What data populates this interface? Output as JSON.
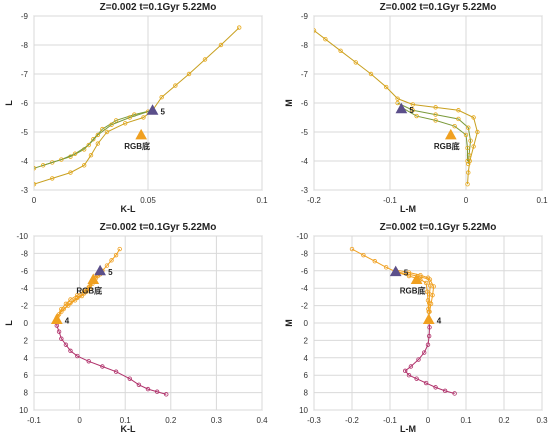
{
  "chart_data": [
    {
      "type": "line",
      "title": "Z=0.002  t=0.1Gyr 5.22Mo",
      "xlabel": "K-L",
      "ylabel": "L",
      "xlim": [
        0,
        0.1
      ],
      "ylim": [
        -3,
        -9
      ],
      "x_ticks": [
        "0",
        "0.05",
        "0.1"
      ],
      "y_ticks": [
        "-3",
        "-4",
        "-5",
        "-6",
        "-7",
        "-8",
        "-9"
      ],
      "grid": true,
      "series": [
        {
          "values": [
            [
              0.0,
              -3.2
            ],
            [
              0.008,
              -3.4
            ],
            [
              0.016,
              -3.6
            ],
            [
              0.022,
              -3.85
            ],
            [
              0.025,
              -4.2
            ],
            [
              0.028,
              -4.6
            ],
            [
              0.032,
              -5.0
            ],
            [
              0.04,
              -5.3
            ],
            [
              0.048,
              -5.5
            ],
            [
              0.052,
              -5.75
            ],
            [
              0.056,
              -6.2
            ],
            [
              0.062,
              -6.6
            ],
            [
              0.068,
              -7.0
            ],
            [
              0.075,
              -7.5
            ],
            [
              0.082,
              -8.0
            ],
            [
              0.09,
              -8.6
            ]
          ]
        },
        {
          "values": [
            [
              0.0,
              -3.75
            ],
            [
              0.008,
              -3.95
            ],
            [
              0.016,
              -4.15
            ],
            [
              0.022,
              -4.4
            ],
            [
              0.026,
              -4.75
            ],
            [
              0.03,
              -5.1
            ],
            [
              0.036,
              -5.4
            ],
            [
              0.044,
              -5.6
            ],
            [
              0.052,
              -5.75
            ]
          ]
        },
        {
          "values": [
            [
              0.004,
              -3.85
            ],
            [
              0.012,
              -4.05
            ],
            [
              0.018,
              -4.25
            ],
            [
              0.024,
              -4.55
            ],
            [
              0.028,
              -4.9
            ],
            [
              0.034,
              -5.25
            ],
            [
              0.042,
              -5.5
            ],
            [
              0.05,
              -5.7
            ]
          ]
        }
      ],
      "markers": [
        {
          "label": "5",
          "x": 0.052,
          "y": -5.75,
          "color": "#5b4f8a",
          "shape": "triangle"
        },
        {
          "label": "RGB底",
          "x": 0.047,
          "y": -4.9,
          "color": "#f0a020",
          "shape": "triangle"
        }
      ]
    },
    {
      "type": "line",
      "title": "Z=0.002  t=0.1Gyr 5.22Mo",
      "xlabel": "L-M",
      "ylabel": "M",
      "xlim": [
        -0.2,
        0.1
      ],
      "ylim": [
        -3,
        -9
      ],
      "x_ticks": [
        "-0.2",
        "-0.1",
        "0",
        "0.1"
      ],
      "y_ticks": [
        "-3",
        "-4",
        "-5",
        "-6",
        "-7",
        "-8",
        "-9"
      ],
      "grid": true,
      "series": [
        {
          "values": [
            [
              -0.2,
              -8.5
            ],
            [
              -0.185,
              -8.2
            ],
            [
              -0.165,
              -7.8
            ],
            [
              -0.145,
              -7.4
            ],
            [
              -0.125,
              -7.0
            ],
            [
              -0.105,
              -6.55
            ],
            [
              -0.09,
              -6.15
            ],
            [
              -0.07,
              -5.95
            ],
            [
              -0.04,
              -5.85
            ],
            [
              -0.01,
              -5.75
            ],
            [
              0.01,
              -5.5
            ],
            [
              0.015,
              -5.0
            ],
            [
              0.01,
              -4.5
            ],
            [
              0.005,
              -4.0
            ],
            [
              0.003,
              -3.6
            ],
            [
              0.002,
              -3.2
            ]
          ]
        },
        {
          "values": [
            [
              -0.09,
              -6.0
            ],
            [
              -0.07,
              -5.75
            ],
            [
              -0.04,
              -5.6
            ],
            [
              -0.01,
              -5.45
            ],
            [
              0.003,
              -5.15
            ],
            [
              0.006,
              -4.7
            ],
            [
              0.004,
              -4.2
            ],
            [
              0.003,
              -3.9
            ]
          ]
        },
        {
          "values": [
            [
              -0.085,
              -5.85
            ],
            [
              -0.065,
              -5.55
            ],
            [
              -0.04,
              -5.4
            ],
            [
              -0.015,
              -5.2
            ],
            [
              0.0,
              -4.9
            ],
            [
              0.002,
              -4.45
            ],
            [
              0.002,
              -4.0
            ]
          ]
        }
      ],
      "markers": [
        {
          "label": "5",
          "x": -0.085,
          "y": -5.8,
          "color": "#5b4f8a",
          "shape": "triangle"
        },
        {
          "label": "RGB底",
          "x": -0.02,
          "y": -4.9,
          "color": "#f0a020",
          "shape": "triangle"
        }
      ]
    },
    {
      "type": "line",
      "title": "Z=0.002  t=0.1Gyr 5.22Mo",
      "xlabel": "K-L",
      "ylabel": "L",
      "xlim": [
        -0.1,
        0.4
      ],
      "ylim": [
        10,
        -10
      ],
      "x_ticks": [
        "-0.1",
        "0",
        "0.1",
        "0.2",
        "0.3",
        "0.4"
      ],
      "y_ticks": [
        "-10",
        "-8",
        "-6",
        "-4",
        "-2",
        "0",
        "2",
        "4",
        "6",
        "8",
        "10"
      ],
      "grid": true,
      "series": [
        {
          "name": "",
          "color": "#f0a020",
          "values": [
            [
              -0.05,
              -0.4
            ],
            [
              -0.045,
              -1.0
            ],
            [
              -0.04,
              -1.6
            ],
            [
              -0.03,
              -2.2
            ],
            [
              -0.02,
              -2.7
            ],
            [
              -0.005,
              -3.2
            ],
            [
              0.01,
              -3.7
            ],
            [
              0.022,
              -4.2
            ],
            [
              0.03,
              -4.8
            ],
            [
              0.04,
              -5.4
            ],
            [
              0.05,
              -6.0
            ],
            [
              0.06,
              -6.6
            ],
            [
              0.07,
              -7.2
            ],
            [
              0.08,
              -7.8
            ],
            [
              0.088,
              -8.5
            ]
          ]
        },
        {
          "name": "",
          "color": "#f0a020",
          "values": [
            [
              -0.05,
              -0.6
            ],
            [
              -0.04,
              -1.3
            ],
            [
              -0.025,
              -2.0
            ],
            [
              -0.01,
              -2.6
            ],
            [
              0.005,
              -3.1
            ],
            [
              0.015,
              -3.6
            ],
            [
              0.02,
              -4.1
            ],
            [
              0.025,
              -4.6
            ],
            [
              0.03,
              -5.1
            ],
            [
              0.038,
              -5.6
            ],
            [
              0.045,
              -6.0
            ]
          ]
        },
        {
          "name": "",
          "color": "#f0a020",
          "values": [
            [
              -0.048,
              -0.8
            ],
            [
              -0.035,
              -1.6
            ],
            [
              -0.02,
              -2.3
            ],
            [
              -0.005,
              -2.9
            ],
            [
              0.01,
              -3.4
            ],
            [
              0.022,
              -3.9
            ],
            [
              0.028,
              -4.5
            ],
            [
              0.035,
              -5.1
            ],
            [
              0.045,
              -5.6
            ]
          ]
        },
        {
          "name": "",
          "color": "#b0306a",
          "values": [
            [
              -0.05,
              -0.4
            ],
            [
              -0.05,
              0.3
            ],
            [
              -0.045,
              1.0
            ],
            [
              -0.04,
              1.8
            ],
            [
              -0.03,
              2.5
            ],
            [
              -0.02,
              3.2
            ],
            [
              -0.005,
              3.8
            ],
            [
              0.02,
              4.4
            ],
            [
              0.05,
              5.0
            ],
            [
              0.08,
              5.6
            ],
            [
              0.11,
              6.4
            ],
            [
              0.13,
              7.1
            ],
            [
              0.15,
              7.6
            ],
            [
              0.17,
              7.9
            ],
            [
              0.19,
              8.2
            ]
          ]
        }
      ],
      "markers": [
        {
          "label": "5",
          "x": 0.045,
          "y": -6.0,
          "color": "#5b4f8a",
          "shape": "triangle"
        },
        {
          "label": "RGB底",
          "x": 0.03,
          "y": -5.0,
          "color": "#f0a020",
          "shape": "triangle"
        },
        {
          "label": "4",
          "x": -0.05,
          "y": -0.4,
          "color": "#f0a020",
          "shape": "triangle"
        }
      ]
    },
    {
      "type": "line",
      "title": "Z=0.002  t=0.1Gyr 5.22Mo",
      "xlabel": "L-M",
      "ylabel": "M",
      "xlim": [
        -0.3,
        0.3
      ],
      "ylim": [
        10,
        -10
      ],
      "x_ticks": [
        "-0.3",
        "-0.2",
        "-0.1",
        "0",
        "0.1",
        "0.2",
        "0.3"
      ],
      "y_ticks": [
        "-10",
        "-8",
        "-6",
        "-4",
        "-2",
        "0",
        "2",
        "4",
        "6",
        "8",
        "10"
      ],
      "grid": true,
      "series": [
        {
          "name": "",
          "color": "#f0a020",
          "values": [
            [
              -0.2,
              -8.5
            ],
            [
              -0.17,
              -7.8
            ],
            [
              -0.14,
              -7.1
            ],
            [
              -0.11,
              -6.4
            ],
            [
              -0.085,
              -5.9
            ],
            [
              -0.05,
              -5.6
            ],
            [
              -0.02,
              -5.3
            ],
            [
              0.005,
              -5.0
            ],
            [
              0.015,
              -4.2
            ],
            [
              0.012,
              -3.2
            ],
            [
              0.008,
              -2.2
            ],
            [
              0.004,
              -1.3
            ],
            [
              0.002,
              -0.4
            ]
          ]
        },
        {
          "name": "",
          "color": "#f0a020",
          "values": [
            [
              -0.085,
              -6.1
            ],
            [
              -0.05,
              -5.8
            ],
            [
              -0.02,
              -5.5
            ],
            [
              0.0,
              -5.2
            ],
            [
              0.006,
              -4.3
            ],
            [
              0.004,
              -3.3
            ],
            [
              0.003,
              -2.3
            ],
            [
              0.002,
              -1.3
            ]
          ]
        },
        {
          "name": "",
          "color": "#f0a020",
          "values": [
            [
              -0.08,
              -5.8
            ],
            [
              -0.05,
              -5.4
            ],
            [
              -0.02,
              -5.0
            ],
            [
              -0.005,
              -4.6
            ],
            [
              -0.002,
              -3.6
            ],
            [
              0.0,
              -2.6
            ],
            [
              0.001,
              -1.6
            ]
          ]
        },
        {
          "name": "",
          "color": "#b0306a",
          "values": [
            [
              0.002,
              -0.4
            ],
            [
              0.004,
              0.5
            ],
            [
              0.003,
              1.5
            ],
            [
              0.0,
              2.5
            ],
            [
              -0.01,
              3.4
            ],
            [
              -0.025,
              4.2
            ],
            [
              -0.045,
              5.0
            ],
            [
              -0.06,
              5.5
            ],
            [
              -0.05,
              6.0
            ],
            [
              -0.03,
              6.4
            ],
            [
              -0.005,
              6.9
            ],
            [
              0.02,
              7.4
            ],
            [
              0.045,
              7.8
            ],
            [
              0.07,
              8.1
            ]
          ]
        }
      ],
      "markers": [
        {
          "label": "5",
          "x": -0.085,
          "y": -5.9,
          "color": "#5b4f8a",
          "shape": "triangle"
        },
        {
          "label": "RGB底",
          "x": -0.03,
          "y": -5.0,
          "color": "#f0a020",
          "shape": "triangle"
        },
        {
          "label": "4",
          "x": 0.002,
          "y": -0.4,
          "color": "#f0a020",
          "shape": "triangle"
        }
      ]
    }
  ]
}
